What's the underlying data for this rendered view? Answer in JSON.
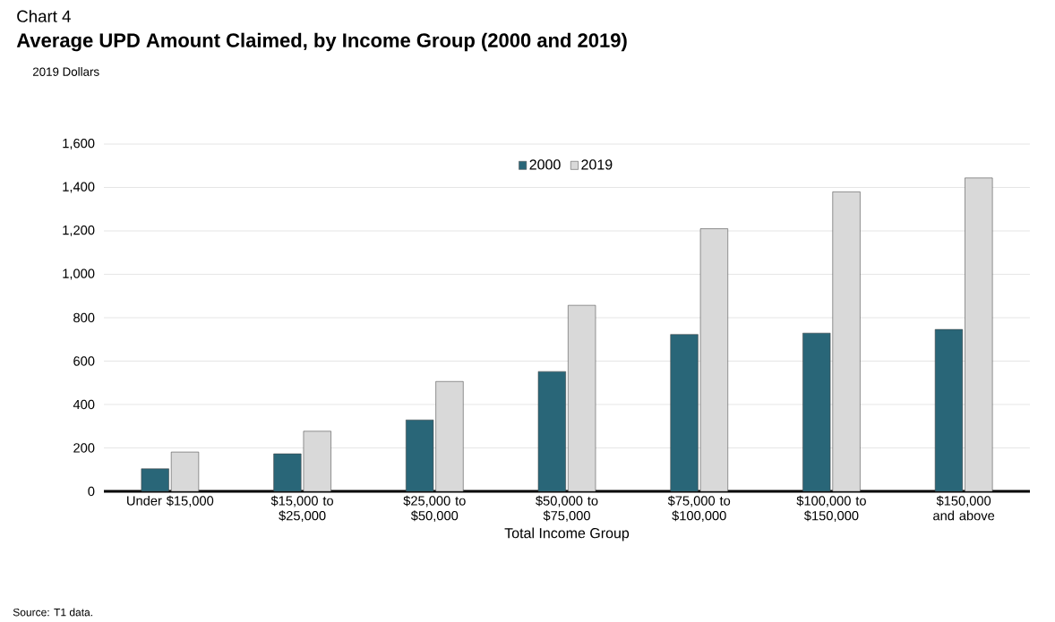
{
  "chart_data": {
    "type": "bar",
    "title": "Average UPD Amount Claimed, by Income Group (2000 and 2019)",
    "xlabel": "Total Income Group",
    "annotations": [
      "Chart 4",
      "2019 Dollars",
      "Source: T1 data."
    ],
    "categories": [
      "Under $15,000",
      "$15,000 to $25,000",
      "$25,000 to $50,000",
      "$50,000 to $75,000",
      "$75,000 to $100,000",
      "$100,000 to $150,000",
      "$150,000 and above"
    ],
    "series": [
      {
        "name": "2000",
        "color": "#296678",
        "values": [
          104,
          173,
          329,
          552,
          723,
          729,
          746
        ]
      },
      {
        "name": "2019",
        "color": "#d9d9d9",
        "values": [
          181,
          277,
          506,
          857,
          1210,
          1380,
          1444
        ]
      }
    ],
    "ylim": [
      0,
      1600
    ],
    "yticks": [
      {
        "value": 0,
        "label": "0"
      },
      {
        "value": 200,
        "label": "200"
      },
      {
        "value": 400,
        "label": "400"
      },
      {
        "value": 600,
        "label": "600"
      },
      {
        "value": 800,
        "label": "800"
      },
      {
        "value": 1000,
        "label": "1,000"
      },
      {
        "value": 1200,
        "label": "1,200"
      },
      {
        "value": 1400,
        "label": "1,400"
      },
      {
        "value": 1600,
        "label": "1,600"
      }
    ],
    "grid": "y",
    "legend": "top"
  }
}
